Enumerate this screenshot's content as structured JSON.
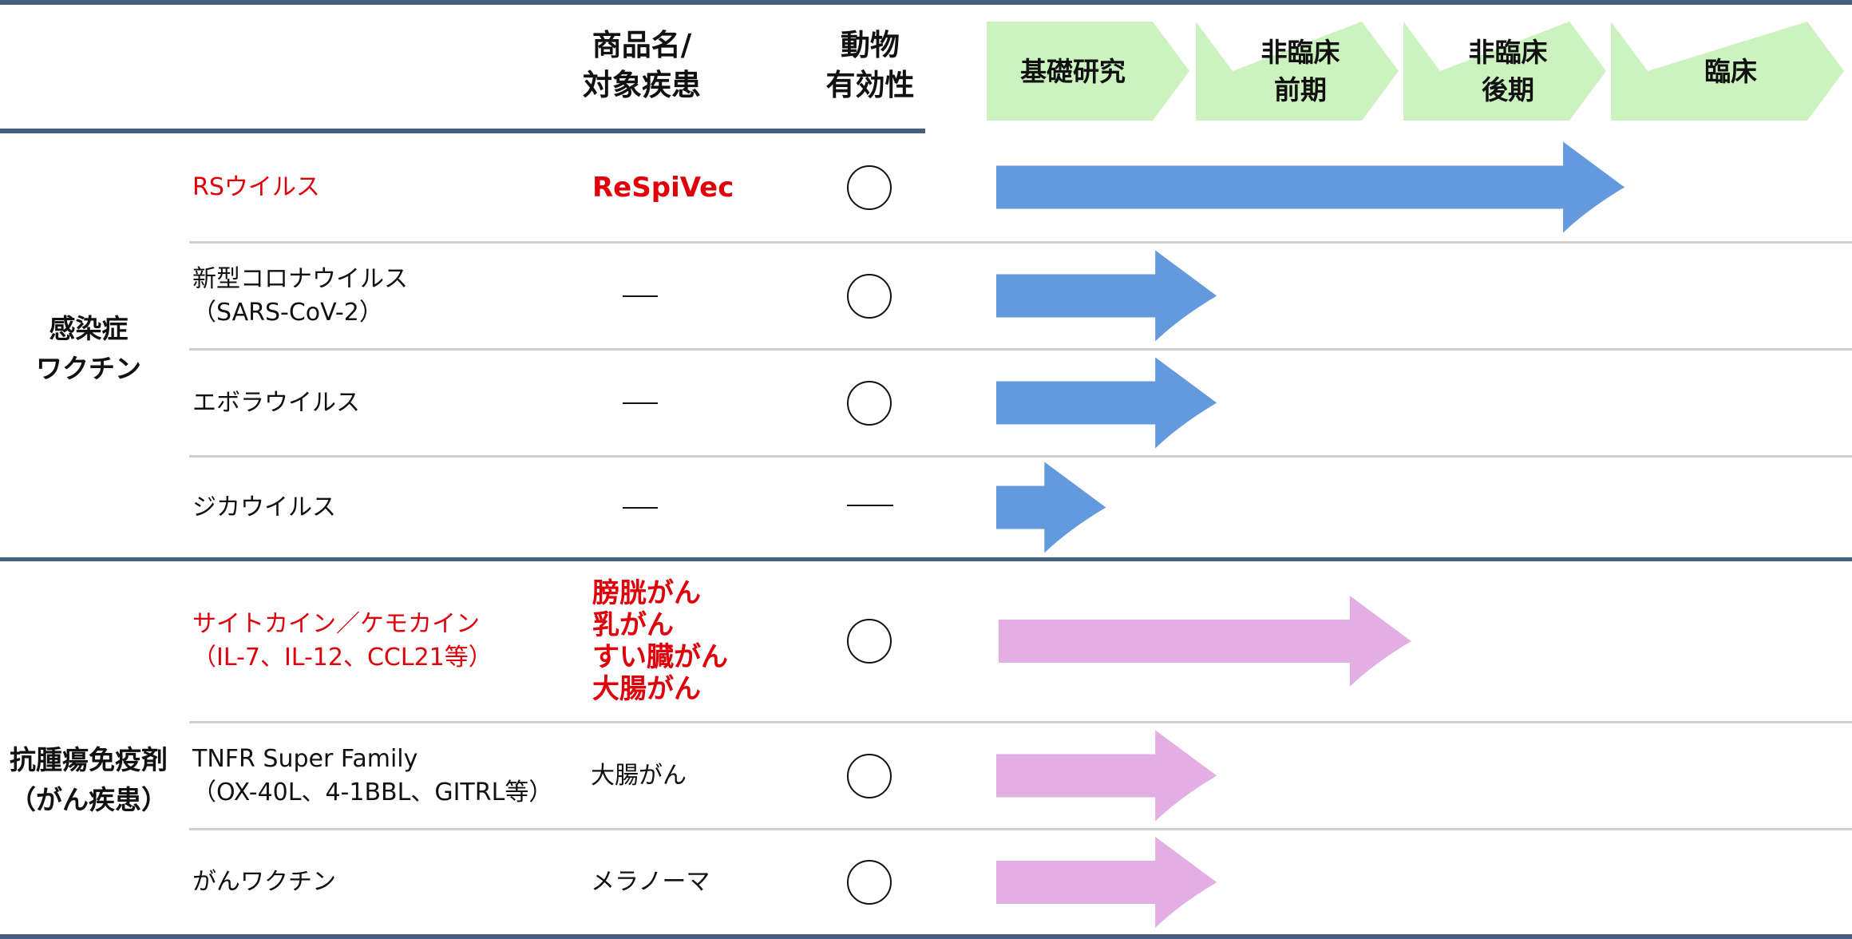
{
  "header": {
    "product_col": "商品名/\n対象疾患",
    "efficacy_col": "動物\n有効性",
    "stages": [
      "基礎研究",
      "非臨床\n前期",
      "非臨床\n後期",
      "臨床"
    ],
    "stage_color": "#ccf2c0"
  },
  "colors": {
    "border": "#455f80",
    "vaccine_arrow": "#6399dd",
    "oncology_arrow": "#e2aee3",
    "highlight_text": "#e0000a"
  },
  "groups": [
    {
      "label": "感染症\nワクチン"
    },
    {
      "label": "抗腫瘍免疫剤\n（がん疾患）"
    }
  ],
  "rows": [
    {
      "group": 0,
      "name": "RSウイルス",
      "product": "ReSpiVec",
      "efficacy": "circle",
      "highlight": true,
      "progress_stages": 3.05
    },
    {
      "group": 0,
      "name": "新型コロナウイルス\n（SARS-CoV-2）",
      "product": "—",
      "efficacy": "circle",
      "highlight": false,
      "progress_stages": 1.1
    },
    {
      "group": 0,
      "name": "エボラウイルス",
      "product": "—",
      "efficacy": "circle",
      "highlight": false,
      "progress_stages": 1.1
    },
    {
      "group": 0,
      "name": "ジカウイルス",
      "product": "—",
      "efficacy": "—",
      "highlight": false,
      "progress_stages": 0.57
    },
    {
      "group": 1,
      "name": "サイトカイン／ケモカイン\n（IL-7、IL-12、CCL21等）",
      "product": "膀胱がん\n乳がん\nすい臓がん\n大腸がん",
      "efficacy": "circle",
      "highlight": true,
      "progress_stages": 2.03
    },
    {
      "group": 1,
      "name": "TNFR Super Family\n（OX-40L、4-1BBL、GITRL等）",
      "product": "大腸がん",
      "efficacy": "circle",
      "highlight": false,
      "progress_stages": 1.1
    },
    {
      "group": 1,
      "name": "がんワクチン",
      "product": "メラノーマ",
      "efficacy": "circle",
      "highlight": false,
      "progress_stages": 1.1
    }
  ]
}
